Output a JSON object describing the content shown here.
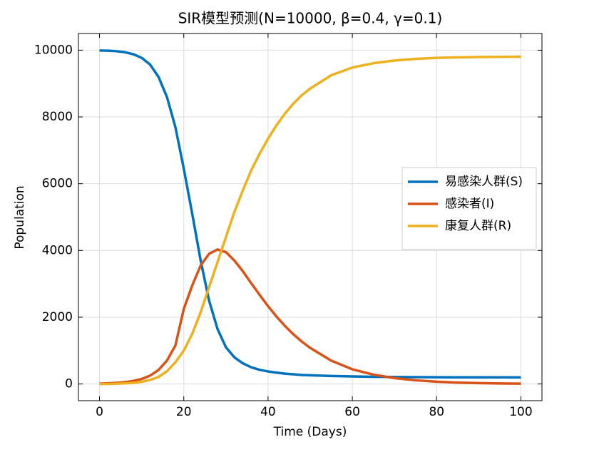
{
  "chart_data": {
    "type": "line",
    "title": "SIR模型预测(N=10000, β=0.4, γ=0.1)",
    "x_label": "Time (Days)",
    "y_label": "Population",
    "x": [
      0,
      2,
      4,
      6,
      8,
      10,
      12,
      14,
      16,
      18,
      20,
      22,
      24,
      26,
      28,
      30,
      32,
      34,
      36,
      38,
      40,
      42,
      44,
      46,
      48,
      50,
      55,
      60,
      65,
      70,
      75,
      80,
      85,
      90,
      95,
      100
    ],
    "series": [
      {
        "name": "易感染人群(S)",
        "color": "#0072BD",
        "values": [
          9990,
          9985,
          9970,
          9940,
          9880,
          9770,
          9570,
          9200,
          8600,
          7700,
          6450,
          5100,
          3700,
          2500,
          1650,
          1100,
          800,
          620,
          500,
          425,
          375,
          340,
          310,
          290,
          270,
          260,
          240,
          225,
          215,
          210,
          205,
          202,
          200,
          200,
          199,
          198
        ]
      },
      {
        "name": "感染者(I)",
        "color": "#D95319",
        "values": [
          10,
          20,
          35,
          55,
          90,
          150,
          250,
          420,
          700,
          1150,
          2250,
          2950,
          3550,
          3900,
          4030,
          3950,
          3700,
          3380,
          3020,
          2670,
          2330,
          2020,
          1740,
          1490,
          1270,
          1080,
          700,
          440,
          280,
          175,
          110,
          68,
          42,
          26,
          16,
          10
        ]
      },
      {
        "name": "康复人群(R)",
        "color": "#EDB120",
        "values": [
          0,
          3,
          8,
          18,
          35,
          65,
          120,
          210,
          380,
          650,
          1000,
          1500,
          2150,
          2900,
          3650,
          4400,
          5150,
          5800,
          6400,
          6900,
          7350,
          7750,
          8100,
          8400,
          8650,
          8850,
          9250,
          9480,
          9610,
          9690,
          9740,
          9770,
          9785,
          9795,
          9800,
          9805
        ]
      }
    ],
    "xlim": [
      -5,
      105
    ],
    "ylim": [
      -500,
      10500
    ],
    "xticks": [
      0,
      20,
      40,
      60,
      80,
      100
    ],
    "yticks": [
      0,
      2000,
      4000,
      6000,
      8000,
      10000
    ],
    "grid": true,
    "legend": "right"
  }
}
